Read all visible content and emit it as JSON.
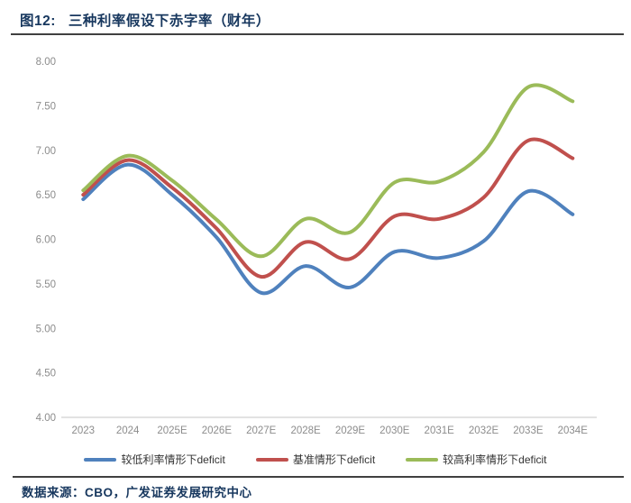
{
  "header": {
    "tag": "图12:",
    "title": "三种利率假设下赤字率（财年）"
  },
  "footer": {
    "source": "数据来源：CBO，广发证券发展研究中心"
  },
  "colors": {
    "title_text": "#17375E",
    "divider": "#404040",
    "axis_line": "#D9D9D9",
    "axis_label": "#8C8C8C",
    "legend_text": "#333333",
    "background": "#FFFFFF",
    "series_blue": "#4F81BD",
    "series_red": "#C0504D",
    "series_green": "#9BBB59"
  },
  "chart_data": {
    "type": "line",
    "smooth": true,
    "grid": false,
    "legend_position": "bottom",
    "title": "三种利率假设下赤字率（财年）",
    "categories": [
      "2023",
      "2024",
      "2025E",
      "2026E",
      "2027E",
      "2028E",
      "2029E",
      "2030E",
      "2031E",
      "2032E",
      "2033E",
      "2034E"
    ],
    "y_axis": {
      "min": 4.0,
      "max": 8.0,
      "step": 0.5,
      "tick_labels": [
        "8.00",
        "7.50",
        "7.00",
        "6.50",
        "6.00",
        "5.50",
        "5.00",
        "4.50",
        "4.00"
      ]
    },
    "series": [
      {
        "name": "较低利率情形下deficit",
        "color": "#4F81BD",
        "values": [
          6.45,
          6.84,
          6.5,
          6.02,
          5.4,
          5.7,
          5.46,
          5.86,
          5.79,
          5.98,
          6.54,
          6.28
        ]
      },
      {
        "name": "基准情形下deficit",
        "color": "#C0504D",
        "values": [
          6.5,
          6.89,
          6.58,
          6.12,
          5.58,
          5.97,
          5.78,
          6.26,
          6.23,
          6.47,
          7.11,
          6.91
        ]
      },
      {
        "name": "较高利率情形下deficit",
        "color": "#9BBB59",
        "values": [
          6.55,
          6.94,
          6.66,
          6.22,
          5.81,
          6.23,
          6.08,
          6.64,
          6.65,
          6.98,
          7.71,
          7.55
        ]
      }
    ]
  }
}
